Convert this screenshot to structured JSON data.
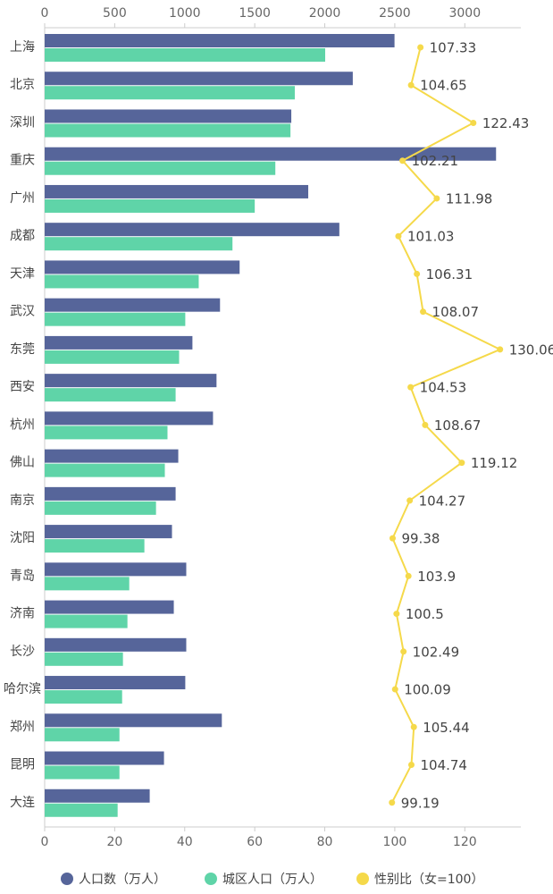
{
  "chart_data": {
    "type": "bar-line",
    "categories": [
      "上海",
      "北京",
      "深圳",
      "重庆",
      "广州",
      "成都",
      "天津",
      "武汉",
      "东莞",
      "西安",
      "杭州",
      "佛山",
      "南京",
      "沈阳",
      "青岛",
      "济南",
      "长沙",
      "哈尔滨",
      "郑州",
      "昆明",
      "大连"
    ],
    "series": [
      {
        "name": "人口数（万人）",
        "color": "#56659a",
        "axis": "x2",
        "mark": "bar",
        "values": [
          2498,
          2200,
          1761,
          3223,
          1882,
          2104,
          1392,
          1252,
          1055,
          1227,
          1202,
          954,
          935,
          909,
          1011,
          922,
          1011,
          1004,
          1265,
          852,
          750
        ]
      },
      {
        "name": "城区人口（万人）",
        "color": "#5fd4a8",
        "axis": "x2",
        "mark": "bar",
        "values": [
          2003,
          1786,
          1755,
          1647,
          1500,
          1341,
          1100,
          1004,
          960,
          935,
          877,
          858,
          795,
          712,
          604,
          591,
          559,
          553,
          534,
          534,
          521
        ]
      },
      {
        "name": "性别比（女=100）",
        "color": "#f5d94a",
        "axis": "x",
        "mark": "line",
        "values": [
          107.33,
          104.65,
          122.43,
          102.21,
          111.98,
          101.03,
          106.31,
          108.07,
          130.06,
          104.53,
          108.67,
          119.12,
          104.27,
          99.38,
          103.9,
          100.5,
          102.49,
          100.09,
          105.44,
          104.74,
          99.19
        ]
      }
    ],
    "x2lim": [
      0,
      3400
    ],
    "x2ticks": [
      0,
      500,
      1000,
      1500,
      2000,
      2500,
      3000
    ],
    "xlim": [
      0,
      136
    ],
    "xticks": [
      0,
      20,
      40,
      60,
      80,
      100,
      120
    ],
    "legend": "bottom"
  }
}
